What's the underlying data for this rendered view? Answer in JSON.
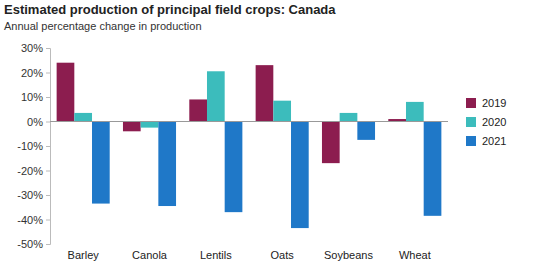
{
  "chart_data": {
    "type": "bar",
    "title": "Estimated production of principal field crops: Canada",
    "subtitle": "Annual percentage change in production",
    "categories": [
      "Barley",
      "Canola",
      "Lentils",
      "Oats",
      "Soybeans",
      "Wheat"
    ],
    "series": [
      {
        "name": "2019",
        "color": "#8c1d4f",
        "values": [
          24,
          -4,
          9,
          23,
          -17,
          1
        ]
      },
      {
        "name": "2020",
        "color": "#3cbcbc",
        "values": [
          3.5,
          -2.5,
          20.5,
          8.5,
          3.5,
          8
        ]
      },
      {
        "name": "2021",
        "color": "#1f78c8",
        "values": [
          -33.5,
          -34.5,
          -37,
          -43.5,
          -7.5,
          -38.5
        ]
      }
    ],
    "ylim": [
      -50,
      30
    ],
    "yticks": [
      {
        "value": -50,
        "label": "-50%"
      },
      {
        "value": -40,
        "label": "-40%"
      },
      {
        "value": -30,
        "label": "-30%"
      },
      {
        "value": -20,
        "label": "-20%"
      },
      {
        "value": -10,
        "label": "-10%"
      },
      {
        "value": 0,
        "label": "0%"
      },
      {
        "value": 10,
        "label": "10%"
      },
      {
        "value": 20,
        "label": "20%"
      },
      {
        "value": 30,
        "label": "30%"
      }
    ],
    "grid": false,
    "legend": "right"
  }
}
